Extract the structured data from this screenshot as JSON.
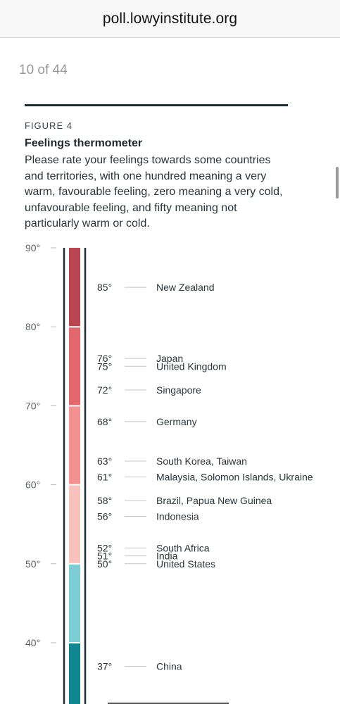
{
  "browser": {
    "url": "poll.lowyinstitute.org"
  },
  "page": {
    "counter": "10 of 44"
  },
  "figure": {
    "label": "FIGURE 4",
    "title": "Feelings thermometer",
    "description": "Please rate your feelings towards some countries and territories, with one hundred meaning a very warm, favourable feeling, zero meaning a very cold, unfavourable feeling, and fifty meaning not particularly warm or cold."
  },
  "chart_data": {
    "type": "thermometer",
    "axis_ticks": [
      "90°",
      "80°",
      "70°",
      "60°",
      "50°",
      "40°"
    ],
    "tick_values": [
      90,
      80,
      70,
      60,
      50,
      40
    ],
    "ylim": [
      34,
      90
    ],
    "bands": [
      {
        "from": 80,
        "to": 90,
        "color": "#b94550"
      },
      {
        "from": 70,
        "to": 80,
        "color": "#e4676d"
      },
      {
        "from": 60,
        "to": 70,
        "color": "#f2918f"
      },
      {
        "from": 50,
        "to": 60,
        "color": "#f7c2bc"
      },
      {
        "from": 40,
        "to": 50,
        "color": "#7ccdd3"
      },
      {
        "from": 30,
        "to": 40,
        "color": "#0f8690"
      }
    ],
    "points": [
      {
        "value": 85,
        "value_label": "85°",
        "name": "New Zealand"
      },
      {
        "value": 76,
        "value_label": "76°",
        "name": "Japan"
      },
      {
        "value": 75,
        "value_label": "75°",
        "name": "United Kingdom"
      },
      {
        "value": 72,
        "value_label": "72°",
        "name": "Singapore"
      },
      {
        "value": 68,
        "value_label": "68°",
        "name": "Germany"
      },
      {
        "value": 63,
        "value_label": "63°",
        "name": "South Korea, Taiwan"
      },
      {
        "value": 61,
        "value_label": "61°",
        "name": "Malaysia, Solomon Islands, Ukraine"
      },
      {
        "value": 58,
        "value_label": "58°",
        "name": "Brazil, Papua New Guinea"
      },
      {
        "value": 56,
        "value_label": "56°",
        "name": "Indonesia"
      },
      {
        "value": 52,
        "value_label": "52°",
        "name": "South Africa"
      },
      {
        "value": 51,
        "value_label": "51°",
        "name": "India"
      },
      {
        "value": 50,
        "value_label": "50°",
        "name": "United States"
      },
      {
        "value": 37,
        "value_label": "37°",
        "name": "China"
      }
    ]
  }
}
